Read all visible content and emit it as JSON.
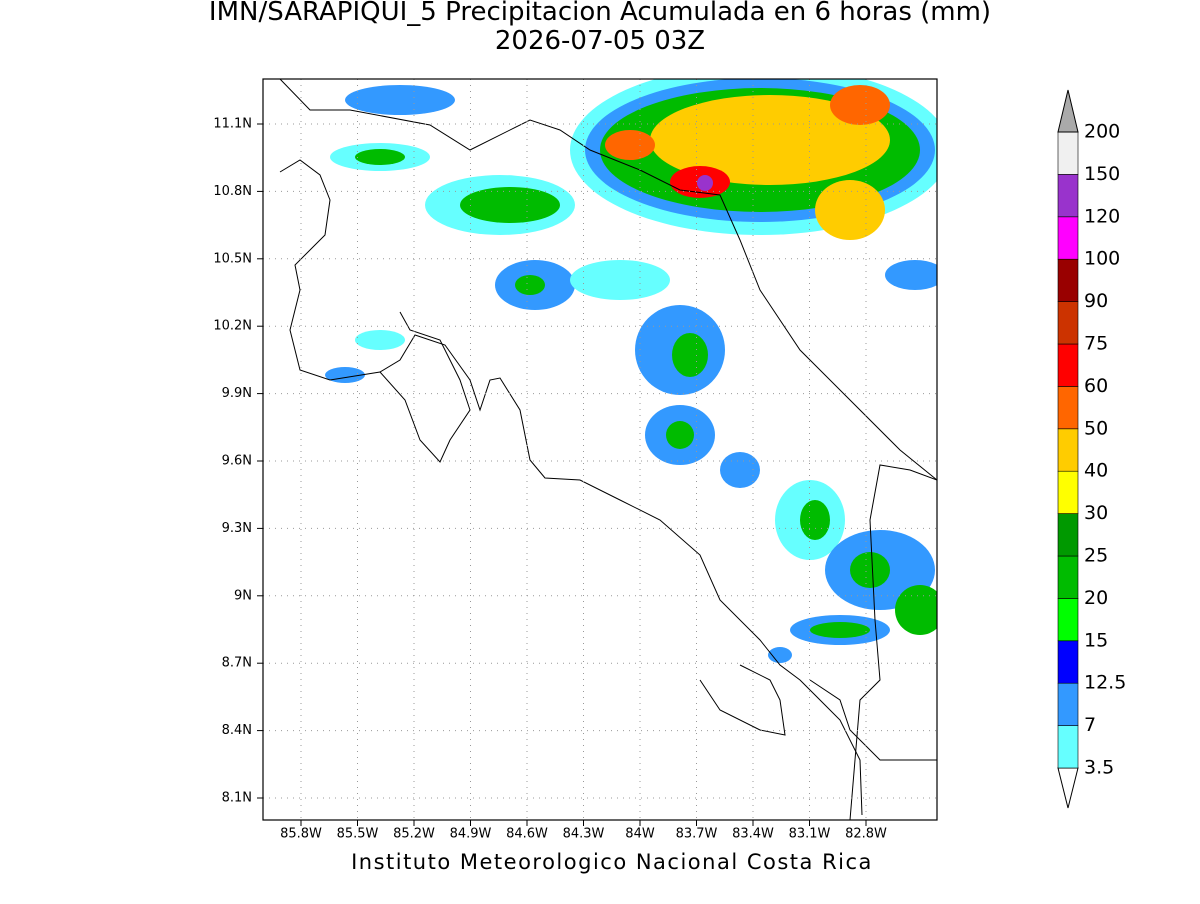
{
  "header": {
    "title": "IMN/SARAPIQUI_5 Precipitacion Acumulada en 6 horas (mm)",
    "subtitle": "2026-07-05 03Z"
  },
  "map": {
    "lat_labels": [
      "11.1N",
      "10.8N",
      "10.5N",
      "10.2N",
      "9.9N",
      "9.6N",
      "9.3N",
      "9N",
      "8.7N",
      "8.4N",
      "8.1N"
    ],
    "lon_labels": [
      "85.8W",
      "85.5W",
      "85.2W",
      "84.9W",
      "84.6W",
      "84.3W",
      "84W",
      "83.7W",
      "83.4W",
      "83.1W",
      "82.8W"
    ]
  },
  "colorbar": {
    "levels": [
      3.5,
      7,
      12.5,
      15,
      20,
      25,
      30,
      40,
      50,
      60,
      75,
      90,
      100,
      120,
      150,
      200
    ],
    "colors": [
      "#ffffff",
      "#66ffff",
      "#3399ff",
      "#0000ff",
      "#00ff00",
      "#00bb00",
      "#009900",
      "#ffff00",
      "#ffcc00",
      "#ff6600",
      "#ff0000",
      "#cc3300",
      "#990000",
      "#ff00ff",
      "#9933cc",
      "#f0f0f0",
      "#aaaaaa"
    ]
  },
  "footer": "Instituto Meteorologico Nacional Costa Rica"
}
